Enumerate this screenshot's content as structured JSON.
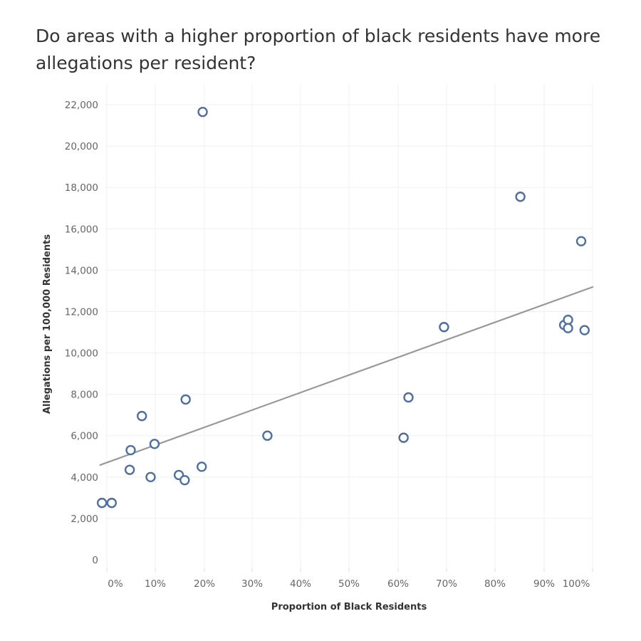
{
  "chart_data": {
    "type": "scatter",
    "title": "Do areas with a higher proportion of black residents have more allegations per resident?",
    "xlabel": "Proportion of Black Residents",
    "ylabel": "Allegations per 100,000 Residents",
    "x_ticks": [
      "0%",
      "10%",
      "20%",
      "30%",
      "40%",
      "50%",
      "60%",
      "70%",
      "80%",
      "90%",
      "100%"
    ],
    "y_ticks": [
      "0",
      "2,000",
      "4,000",
      "6,000",
      "8,000",
      "10,000",
      "12,000",
      "14,000",
      "16,000",
      "18,000",
      "20,000",
      "22,000"
    ],
    "xlim": [
      -0.02,
      1.0
    ],
    "ylim": [
      -600,
      22500
    ],
    "grid": true,
    "marker_color": "#4e6fa0",
    "trend_color": "#999999",
    "trendline": {
      "intercept": 4700,
      "slope": 8500
    },
    "points": [
      {
        "x": -0.01,
        "y": 2750
      },
      {
        "x": 0.01,
        "y": 2750
      },
      {
        "x": 0.047,
        "y": 4350
      },
      {
        "x": 0.049,
        "y": 5300
      },
      {
        "x": 0.072,
        "y": 6950
      },
      {
        "x": 0.09,
        "y": 4000
      },
      {
        "x": 0.098,
        "y": 5600
      },
      {
        "x": 0.148,
        "y": 4100
      },
      {
        "x": 0.16,
        "y": 3850
      },
      {
        "x": 0.162,
        "y": 7750
      },
      {
        "x": 0.195,
        "y": 4500
      },
      {
        "x": 0.197,
        "y": 21650
      },
      {
        "x": 0.33,
        "y": 6000
      },
      {
        "x": 0.61,
        "y": 5900
      },
      {
        "x": 0.62,
        "y": 7850
      },
      {
        "x": 0.693,
        "y": 11250
      },
      {
        "x": 0.85,
        "y": 17550
      },
      {
        "x": 0.94,
        "y": 11350
      },
      {
        "x": 0.948,
        "y": 11600
      },
      {
        "x": 0.948,
        "y": 11200
      },
      {
        "x": 0.975,
        "y": 15400
      },
      {
        "x": 0.982,
        "y": 11100
      }
    ]
  }
}
